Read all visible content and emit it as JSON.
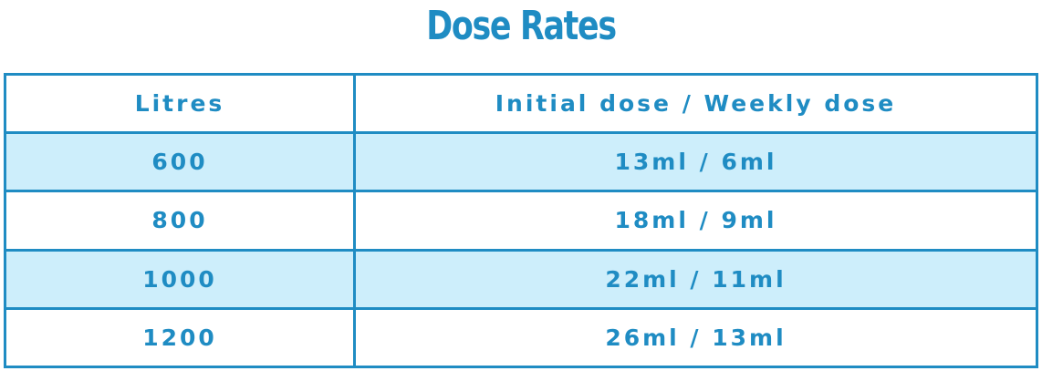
{
  "title": "Dose Rates",
  "table": {
    "header": [
      "Litres",
      "Initial dose / Weekly dose"
    ],
    "rows": [
      [
        "600",
        "13ml / 6ml"
      ],
      [
        "800",
        "18ml / 9ml"
      ],
      [
        "1000",
        "22ml / 11ml"
      ],
      [
        "1200",
        "26ml / 13ml"
      ]
    ]
  }
}
